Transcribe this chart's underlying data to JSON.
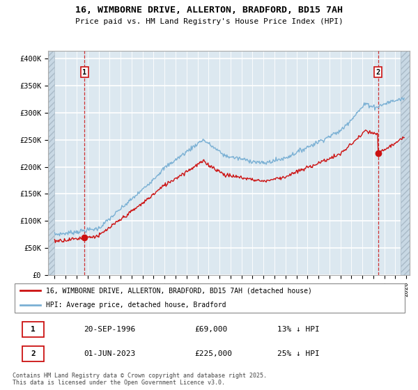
{
  "title": "16, WIMBORNE DRIVE, ALLERTON, BRADFORD, BD15 7AH",
  "subtitle": "Price paid vs. HM Land Registry's House Price Index (HPI)",
  "ylabel_ticks": [
    "£0",
    "£50K",
    "£100K",
    "£150K",
    "£200K",
    "£250K",
    "£300K",
    "£350K",
    "£400K"
  ],
  "ytick_vals": [
    0,
    50000,
    100000,
    150000,
    200000,
    250000,
    300000,
    350000,
    400000
  ],
  "ylim": [
    0,
    415000
  ],
  "xlim_start": 1993.4,
  "xlim_end": 2026.3,
  "background_color": "#ffffff",
  "plot_bg_color": "#dce8f0",
  "grid_color": "#ffffff",
  "hpi_color": "#7ab0d4",
  "price_color": "#cc1111",
  "hatch_color": "#c8d8e4",
  "purchase1_date": 1996.72,
  "purchase1_price": 69000,
  "purchase2_date": 2023.42,
  "purchase2_price": 225000,
  "legend_line1": "16, WIMBORNE DRIVE, ALLERTON, BRADFORD, BD15 7AH (detached house)",
  "legend_line2": "HPI: Average price, detached house, Bradford",
  "table_row1": [
    "1",
    "20-SEP-1996",
    "£69,000",
    "13% ↓ HPI"
  ],
  "table_row2": [
    "2",
    "01-JUN-2023",
    "£225,000",
    "25% ↓ HPI"
  ],
  "footnote": "Contains HM Land Registry data © Crown copyright and database right 2025.\nThis data is licensed under the Open Government Licence v3.0."
}
